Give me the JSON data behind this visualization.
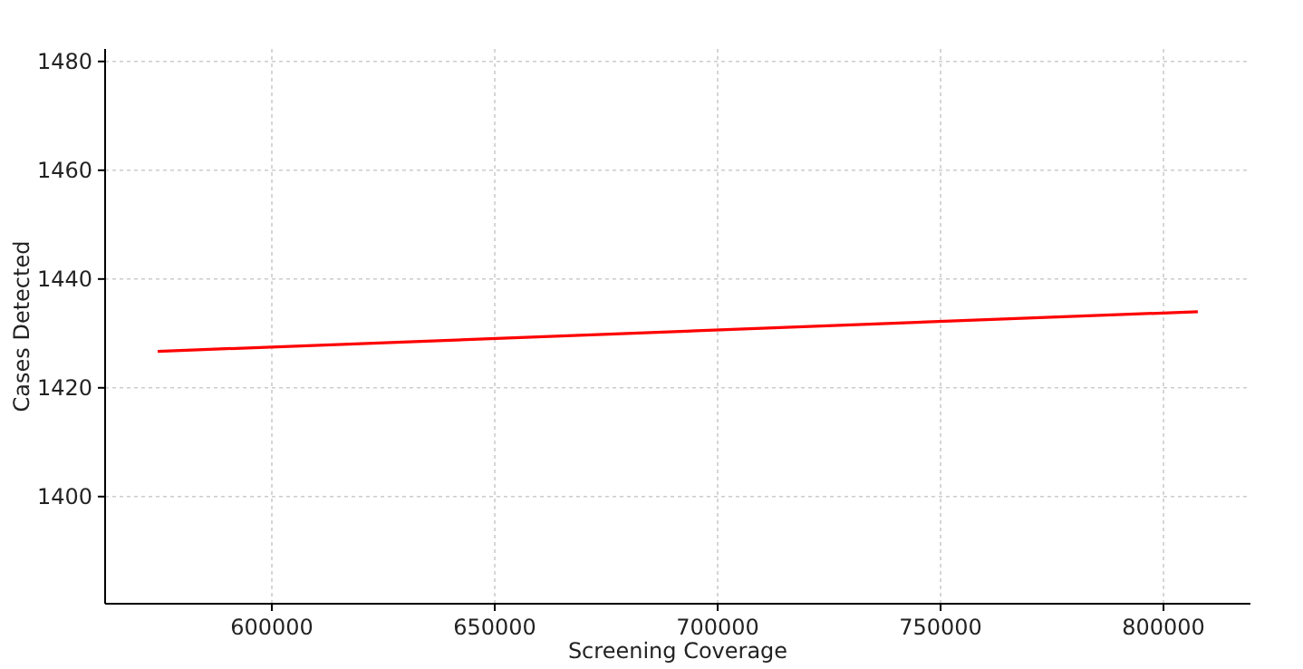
{
  "chart_data": {
    "type": "line",
    "xlabel": "Screening Coverage",
    "ylabel": "Cases Detected",
    "x": [
      574400,
      807700
    ],
    "series": [
      {
        "color": "#ff0000",
        "values": [
          1426.7,
          1434
        ]
      }
    ],
    "xlim": [
      562600,
      819500
    ],
    "ylim": [
      1380.3,
      1482.3
    ],
    "xticks": [
      600000,
      650000,
      700000,
      750000,
      800000
    ],
    "yticks": [
      1400,
      1420,
      1440,
      1460,
      1480
    ],
    "grid": true,
    "line_style": "solid",
    "marker": "none"
  }
}
